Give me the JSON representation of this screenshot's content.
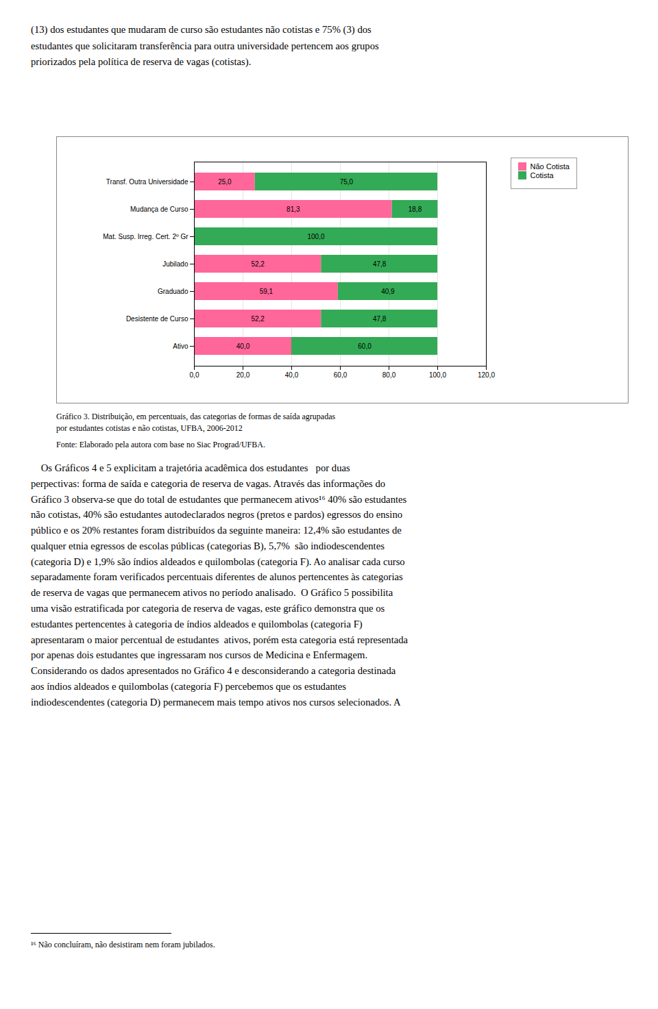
{
  "chart_data": {
    "type": "bar",
    "orientation": "horizontal",
    "stacked": true,
    "title": "Gráfico 3. Distribuição, em percentuais, das categorias de formas de saída agrupadas\npor estudantes cotistas e não cotistas, UFBA, 2006-2012",
    "caption": "Fonte: Elaborado pela autora com base no Siac Prograd/UFBA.",
    "categories": [
      "Ativo",
      "Desistente de Curso",
      "Graduado",
      "Jubilado",
      "Mat. Susp. Irreg. Cert. 2º Gr",
      "Mudança de Curso",
      "Transf. Outra Universidade"
    ],
    "series": [
      {
        "name": "Não Cotista",
        "color": "#FF6699",
        "values": [
          40.0,
          52.2,
          59.1,
          52.2,
          0.0,
          81.3,
          25.0
        ],
        "value_labels": [
          "40,0",
          "52,2",
          "59,1",
          "52,2",
          null,
          "81,3",
          "25,0"
        ]
      },
      {
        "name": "Cotista",
        "color": "#33AA55",
        "values": [
          60.0,
          47.8,
          40.9,
          47.8,
          100.0,
          18.8,
          75.0
        ],
        "value_labels": [
          "60,0",
          "47,8",
          "40,9",
          "47,8",
          "100,0",
          "18,8",
          "75,0"
        ]
      }
    ],
    "xlim": [
      0,
      120
    ],
    "xticks": [
      {
        "value": 0,
        "label": "0,0"
      },
      {
        "value": 20,
        "label": "20,0"
      },
      {
        "value": 40,
        "label": "40,0"
      },
      {
        "value": 60,
        "label": "60,0"
      },
      {
        "value": 80,
        "label": "80,0"
      },
      {
        "value": 100,
        "label": "100,0"
      },
      {
        "value": 120,
        "label": "120,0"
      }
    ],
    "grid": true,
    "legend": "right",
    "data_labels": true
  },
  "page_text_top": "(13) dos estudantes que mudaram de curso são estudantes não cotistas e 75% (3) dos\nestudantes que solicitaram transferência para outra universidade pertencem aos grupos\npriorizados pela política de reserva de vagas (cotistas).",
  "page_text_body": "    Os Gráficos 4 e 5 explicitam a trajetória acadêmica dos estudantes   por duas\nperpectivas: forma de saída e categoria de reserva de vagas. Através das informações do\nGráfico 3 observa-se que do total de estudantes que permanecem ativos¹⁶ 40% são estudantes\nnão cotistas, 40% são estudantes autodeclarados negros (pretos e pardos) egressos do ensino\npúblico e os 20% restantes foram distribuídos da seguinte maneira: 12,4% são estudantes de\nqualquer etnia egressos de escolas públicas (categorias B), 5,7%  são indiodescendentes\n(categoria D) e 1,9% são índios aldeados e quilombolas (categoria F). Ao analisar cada curso\nseparadamente foram verificados percentuais diferentes de alunos pertencentes às categorias\nde reserva de vagas que permanecem ativos no período analisado.  O Gráfico 5 possibilita\numa visão estratificada por categoria de reserva de vagas, este gráfico demonstra que os\nestudantes pertencentes à categoria de índios aldeados e quilombolas (categoria F)\napresentaram o maior percentual de estudantes  ativos, porém esta categoria está representada\npor apenas dois estudantes que ingressaram nos cursos de Medicina e Enfermagem.\nConsiderando os dados apresentados no Gráfico 4 e desconsiderando a categoria destinada\naos índios aldeados e quilombolas (categoria F) percebemos que os estudantes\nindiodescendentes (categoria D) permanecem mais tempo ativos nos cursos selecionados. A",
  "footnote": "¹⁶ Não concluíram, não desistiram nem foram jubilados."
}
